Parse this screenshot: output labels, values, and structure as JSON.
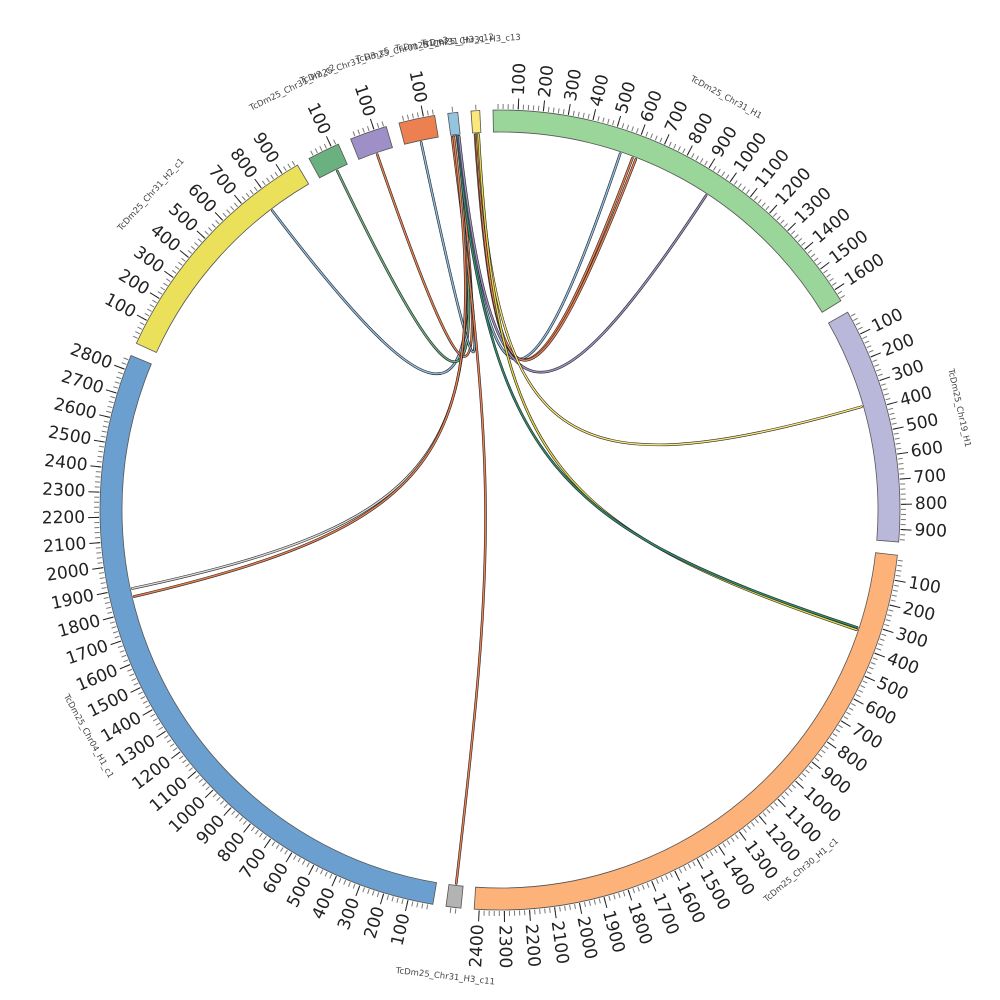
{
  "chart_data": {
    "type": "chord",
    "segments": [
      {
        "name": "TcDm25_Chr31_H1",
        "length": 1650,
        "color": "#9ad59a",
        "tick_start": 100,
        "tick_step": 100
      },
      {
        "name": "TcDm25_Chr19_H1",
        "length": 950,
        "color": "#b9b7da",
        "tick_start": 100,
        "tick_step": 100
      },
      {
        "name": "TcDm25_Chr30_H1_c1",
        "length": 2420,
        "color": "#fdb27a",
        "tick_start": 100,
        "tick_step": 100
      },
      {
        "name": "TcDm25_Chr31_H3_c11",
        "length": 60,
        "color": "#b3b3b3",
        "tick_start": null,
        "tick_step": 100
      },
      {
        "name": "TcDm25_Chr04_H1_c1",
        "length": 2860,
        "color": "#6a9fcf",
        "tick_start": 100,
        "tick_step": 100
      },
      {
        "name": "TcDm25_Chr31_H2_c1",
        "length": 970,
        "color": "#ebe05a",
        "tick_start": 100,
        "tick_step": 100
      },
      {
        "name": "TcDm25_Chr31_H2_c2",
        "length": 130,
        "color": "#6bb17f",
        "tick_start": 100,
        "tick_step": 100
      },
      {
        "name": "TcDm25_Chr31_H3_c5",
        "length": 150,
        "color": "#9e8fc6",
        "tick_start": 100,
        "tick_step": 100
      },
      {
        "name": "TcDm25_Chr01_H1_c3",
        "length": 145,
        "color": "#ec8050",
        "tick_start": 100,
        "tick_step": 100
      },
      {
        "name": "TcDm25_Chr31_H3_c12",
        "length": 40,
        "color": "#93c4e0",
        "tick_start": null,
        "tick_step": 100
      },
      {
        "name": "TcDm25_Chr31_H3_c13",
        "length": 35,
        "color": "#fbe77c",
        "tick_start": null,
        "tick_step": 100
      }
    ],
    "links": [
      {
        "source": "TcDm25_Chr31_H2_c1",
        "source_pos": 780,
        "target": "TcDm25_Chr31_H3_c12",
        "target_pos": 20,
        "color": "#8fbde4"
      },
      {
        "source": "TcDm25_Chr31_H2_c2",
        "source_pos": 80,
        "target": "TcDm25_Chr31_H3_c12",
        "target_pos": 15,
        "color": "#6bb17f"
      },
      {
        "source": "TcDm25_Chr31_H3_c5",
        "source_pos": 80,
        "target": "TcDm25_Chr31_H3_c12",
        "target_pos": 25,
        "color": "#ec8050"
      },
      {
        "source": "TcDm25_Chr01_H1_c3",
        "source_pos": 70,
        "target": "TcDm25_Chr31_H3_c12",
        "target_pos": 10,
        "color": "#8fbde4"
      },
      {
        "source": "TcDm25_Chr31_H1",
        "source_pos": 545,
        "target": "TcDm25_Chr31_H3_c12",
        "target_pos": 30,
        "color": "#8fbde4"
      },
      {
        "source": "TcDm25_Chr31_H1",
        "source_pos": 600,
        "target": "TcDm25_Chr31_H3_c13",
        "target_pos": 10,
        "color": "#ec8050"
      },
      {
        "source": "TcDm25_Chr31_H1",
        "source_pos": 615,
        "target": "TcDm25_Chr31_H3_c13",
        "target_pos": 14,
        "color": "#ec8050"
      },
      {
        "source": "TcDm25_Chr31_H1",
        "source_pos": 950,
        "target": "TcDm25_Chr31_H3_c12",
        "target_pos": 35,
        "color": "#9e8fc6"
      },
      {
        "source": "TcDm25_Chr19_H1",
        "source_pos": 380,
        "target": "TcDm25_Chr31_H3_c13",
        "target_pos": 20,
        "color": "#fbe77c"
      },
      {
        "source": "TcDm25_Chr30_H1_c1",
        "source_pos": 335,
        "target": "TcDm25_Chr31_H3_c13",
        "target_pos": 25,
        "color": "#e5d84a"
      },
      {
        "source": "TcDm25_Chr30_H1_c1",
        "source_pos": 325,
        "target": "TcDm25_Chr31_H3_c12",
        "target_pos": 22,
        "color": "#2f8f6f"
      },
      {
        "source": "TcDm25_Chr31_H3_c11",
        "source_pos": 30,
        "target": "TcDm25_Chr31_H3_c12",
        "target_pos": 5,
        "color": "#ec8050"
      },
      {
        "source": "TcDm25_Chr04_H1_c1",
        "source_pos": 1895,
        "target": "TcDm25_Chr31_H3_c12",
        "target_pos": 18,
        "color": "#d9d9d9"
      },
      {
        "source": "TcDm25_Chr04_H1_c1",
        "source_pos": 1860,
        "target": "TcDm25_Chr31_H3_c12",
        "target_pos": 12,
        "color": "#ec8050"
      }
    ]
  }
}
